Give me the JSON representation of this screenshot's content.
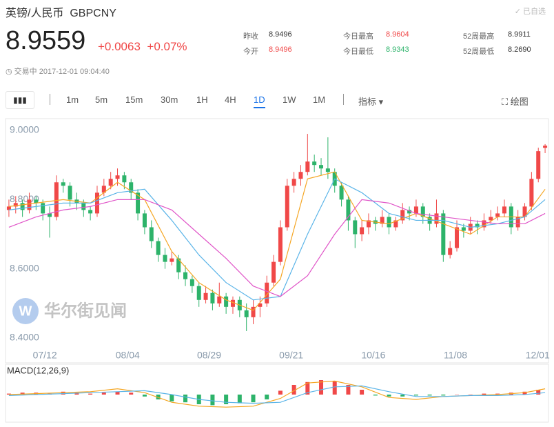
{
  "header": {
    "title": "英镑/人民币",
    "code": "GBPCNY",
    "badge": "已自选",
    "price": "8.9559",
    "change": "+0.0063",
    "change_pct": "+0.07%",
    "status": "交易中",
    "time": "2017-12-01 09:04:40",
    "stats": [
      {
        "label": "昨收",
        "value": "8.9496"
      },
      {
        "label": "今开",
        "value": "8.9496"
      },
      {
        "label": "今日最高",
        "value": "8.9604"
      },
      {
        "label": "今日最低",
        "value": "8.9343"
      },
      {
        "label": "52周最高",
        "value": "8.9911"
      },
      {
        "label": "52周最低",
        "value": "8.2690"
      }
    ]
  },
  "toolbar": {
    "periods": [
      "1m",
      "5m",
      "15m",
      "30m",
      "1H",
      "4H",
      "1D",
      "1W",
      "1M"
    ],
    "active": "1D",
    "indicator": "指标",
    "draw": "绘图"
  },
  "watermark": "华尔街见闻",
  "chart_data": {
    "type": "candlestick",
    "up_color": "#f04848",
    "down_color": "#2db36a",
    "xlim": [
      -0.5,
      79.5
    ],
    "xticks": [
      {
        "value": 5.3,
        "label": "07/12"
      },
      {
        "value": 17.5,
        "label": "08/04"
      },
      {
        "value": 29.5,
        "label": "08/29"
      },
      {
        "value": 41.6,
        "label": "09/21"
      },
      {
        "value": 53.7,
        "label": "10/16"
      },
      {
        "value": 65.8,
        "label": "11/08"
      },
      {
        "value": 77.9,
        "label": "12/01"
      }
    ],
    "ylim": [
      8.37,
      9.03
    ],
    "yticks": [
      {
        "value": 8.4,
        "label": "8.4000"
      },
      {
        "value": 8.6,
        "label": "8.6000"
      },
      {
        "value": 8.8,
        "label": "8.8000"
      },
      {
        "value": 9.0,
        "label": "9.0000"
      }
    ],
    "candles": [
      [
        8.77,
        8.8,
        8.75,
        8.78
      ],
      [
        8.78,
        8.81,
        8.76,
        8.79
      ],
      [
        8.79,
        8.8,
        8.75,
        8.77
      ],
      [
        8.77,
        8.82,
        8.76,
        8.8
      ],
      [
        8.8,
        8.81,
        8.77,
        8.79
      ],
      [
        8.79,
        8.8,
        8.74,
        8.76
      ],
      [
        8.76,
        8.78,
        8.69,
        8.75
      ],
      [
        8.75,
        8.87,
        8.74,
        8.85
      ],
      [
        8.85,
        8.86,
        8.82,
        8.84
      ],
      [
        8.84,
        8.85,
        8.78,
        8.8
      ],
      [
        8.8,
        8.82,
        8.77,
        8.79
      ],
      [
        8.79,
        8.8,
        8.75,
        8.77
      ],
      [
        8.77,
        8.78,
        8.74,
        8.76
      ],
      [
        8.76,
        8.84,
        8.75,
        8.82
      ],
      [
        8.82,
        8.86,
        8.81,
        8.84
      ],
      [
        8.84,
        8.88,
        8.83,
        8.86
      ],
      [
        8.86,
        8.89,
        8.84,
        8.87
      ],
      [
        8.87,
        8.88,
        8.83,
        8.85
      ],
      [
        8.85,
        8.86,
        8.8,
        8.82
      ],
      [
        8.82,
        8.83,
        8.74,
        8.76
      ],
      [
        8.76,
        8.77,
        8.7,
        8.72
      ],
      [
        8.72,
        8.74,
        8.66,
        8.68
      ],
      [
        8.68,
        8.69,
        8.62,
        8.64
      ],
      [
        8.64,
        8.66,
        8.6,
        8.62
      ],
      [
        8.62,
        8.65,
        8.61,
        8.63
      ],
      [
        8.63,
        8.64,
        8.57,
        8.59
      ],
      [
        8.59,
        8.61,
        8.55,
        8.57
      ],
      [
        8.57,
        8.58,
        8.53,
        8.55
      ],
      [
        8.55,
        8.56,
        8.49,
        8.51
      ],
      [
        8.51,
        8.55,
        8.5,
        8.53
      ],
      [
        8.53,
        8.54,
        8.48,
        8.5
      ],
      [
        8.5,
        8.56,
        8.49,
        8.52
      ],
      [
        8.52,
        8.53,
        8.47,
        8.49
      ],
      [
        8.49,
        8.52,
        8.47,
        8.51
      ],
      [
        8.51,
        8.52,
        8.46,
        8.48
      ],
      [
        8.48,
        8.5,
        8.42,
        8.46
      ],
      [
        8.46,
        8.51,
        8.44,
        8.49
      ],
      [
        8.49,
        8.52,
        8.46,
        8.5
      ],
      [
        8.5,
        8.58,
        8.49,
        8.56
      ],
      [
        8.56,
        8.64,
        8.55,
        8.62
      ],
      [
        8.62,
        8.74,
        8.61,
        8.72
      ],
      [
        8.72,
        8.86,
        8.71,
        8.84
      ],
      [
        8.84,
        8.88,
        8.82,
        8.86
      ],
      [
        8.86,
        8.9,
        8.84,
        8.88
      ],
      [
        8.88,
        8.99,
        8.87,
        8.91
      ],
      [
        8.91,
        8.93,
        8.88,
        8.9
      ],
      [
        8.9,
        8.92,
        8.87,
        8.89
      ],
      [
        8.89,
        8.98,
        8.86,
        8.88
      ],
      [
        8.88,
        8.89,
        8.82,
        8.84
      ],
      [
        8.84,
        8.85,
        8.78,
        8.8
      ],
      [
        8.8,
        8.81,
        8.71,
        8.74
      ],
      [
        8.74,
        8.75,
        8.66,
        8.7
      ],
      [
        8.7,
        8.74,
        8.68,
        8.72
      ],
      [
        8.72,
        8.76,
        8.7,
        8.74
      ],
      [
        8.74,
        8.75,
        8.71,
        8.73
      ],
      [
        8.73,
        8.77,
        8.72,
        8.75
      ],
      [
        8.75,
        8.76,
        8.7,
        8.72
      ],
      [
        8.72,
        8.75,
        8.71,
        8.74
      ],
      [
        8.74,
        8.79,
        8.73,
        8.77
      ],
      [
        8.77,
        8.78,
        8.74,
        8.76
      ],
      [
        8.76,
        8.8,
        8.75,
        8.78
      ],
      [
        8.78,
        8.79,
        8.73,
        8.75
      ],
      [
        8.75,
        8.76,
        8.71,
        8.73
      ],
      [
        8.73,
        8.8,
        8.72,
        8.76
      ],
      [
        8.76,
        8.77,
        8.62,
        8.64
      ],
      [
        8.64,
        8.68,
        8.63,
        8.66
      ],
      [
        8.66,
        8.74,
        8.65,
        8.72
      ],
      [
        8.72,
        8.73,
        8.69,
        8.71
      ],
      [
        8.71,
        8.75,
        8.7,
        8.73
      ],
      [
        8.73,
        8.74,
        8.7,
        8.72
      ],
      [
        8.72,
        8.76,
        8.71,
        8.74
      ],
      [
        8.74,
        8.77,
        8.73,
        8.75
      ],
      [
        8.75,
        8.78,
        8.74,
        8.76
      ],
      [
        8.76,
        8.8,
        8.75,
        8.78
      ],
      [
        8.78,
        8.79,
        8.7,
        8.72
      ],
      [
        8.72,
        8.77,
        8.71,
        8.75
      ],
      [
        8.75,
        8.79,
        8.74,
        8.78
      ],
      [
        8.78,
        8.88,
        8.77,
        8.86
      ],
      [
        8.86,
        8.95,
        8.85,
        8.94
      ],
      [
        8.9496,
        8.9604,
        8.9343,
        8.9559
      ]
    ],
    "lines": [
      {
        "color": "#f5a623",
        "x": [
          0,
          4,
          8,
          12,
          16,
          20,
          24,
          28,
          32,
          36,
          40,
          44,
          48,
          52,
          56,
          60,
          64,
          68,
          72,
          76,
          79
        ],
        "values": [
          8.78,
          8.79,
          8.8,
          8.79,
          8.85,
          8.8,
          8.65,
          8.56,
          8.51,
          8.48,
          8.57,
          8.86,
          8.88,
          8.74,
          8.73,
          8.76,
          8.73,
          8.7,
          8.75,
          8.75,
          8.83
        ]
      },
      {
        "color": "#5ab4e8",
        "x": [
          0,
          4,
          8,
          12,
          16,
          20,
          24,
          28,
          32,
          36,
          40,
          44,
          48,
          52,
          56,
          60,
          64,
          68,
          72,
          76,
          79
        ],
        "values": [
          8.77,
          8.78,
          8.79,
          8.79,
          8.82,
          8.83,
          8.74,
          8.64,
          8.56,
          8.51,
          8.52,
          8.7,
          8.86,
          8.82,
          8.76,
          8.74,
          8.74,
          8.72,
          8.73,
          8.75,
          8.8
        ]
      },
      {
        "color": "#e055c8",
        "x": [
          0,
          4,
          8,
          12,
          16,
          20,
          24,
          28,
          32,
          36,
          40,
          44,
          48,
          52,
          56,
          60,
          64,
          68,
          72,
          76,
          79
        ],
        "values": [
          8.72,
          8.75,
          8.77,
          8.78,
          8.8,
          8.8,
          8.77,
          8.7,
          8.63,
          8.55,
          8.52,
          8.58,
          8.7,
          8.8,
          8.79,
          8.76,
          8.75,
          8.74,
          8.73,
          8.73,
          8.76
        ]
      }
    ],
    "macd": {
      "title": "MACD(12,26,9)",
      "ylim": [
        -0.02,
        0.02
      ],
      "hist": {
        "x": [
          0,
          2,
          4,
          6,
          8,
          10,
          12,
          14,
          16,
          18,
          20,
          22,
          24,
          26,
          28,
          30,
          32,
          34,
          36,
          38,
          40,
          42,
          44,
          46,
          48,
          50,
          52,
          54,
          56,
          58,
          60,
          62,
          64,
          66,
          68,
          70,
          72,
          74,
          76,
          78
        ],
        "values": [
          0.001,
          0.002,
          0.002,
          0.001,
          0.003,
          0.002,
          0.001,
          0.002,
          0.003,
          0.002,
          -0.002,
          -0.005,
          -0.007,
          -0.008,
          -0.01,
          -0.011,
          -0.01,
          -0.009,
          -0.008,
          -0.005,
          0.004,
          0.01,
          0.013,
          0.015,
          0.014,
          0.01,
          0.005,
          -0.001,
          -0.002,
          -0.002,
          -0.001,
          -0.001,
          -0.001,
          0,
          0,
          0.001,
          0.001,
          0.002,
          0.003,
          0.005
        ]
      },
      "lines": [
        {
          "color": "#f5a623",
          "x": [
            0,
            4,
            8,
            12,
            16,
            20,
            24,
            28,
            32,
            36,
            40,
            44,
            48,
            52,
            56,
            60,
            64,
            68,
            72,
            76,
            79
          ],
          "values": [
            0,
            0.001,
            0.002,
            0.003,
            0.006,
            0.002,
            -0.008,
            -0.012,
            -0.013,
            -0.012,
            -0.004,
            0.012,
            0.014,
            0.008,
            -0.003,
            -0.005,
            -0.002,
            -0.001,
            0,
            0.002,
            0.006
          ]
        },
        {
          "color": "#5ab4e8",
          "x": [
            0,
            4,
            8,
            12,
            16,
            20,
            24,
            28,
            32,
            36,
            40,
            44,
            48,
            52,
            56,
            60,
            64,
            68,
            72,
            76,
            79
          ],
          "values": [
            -0.001,
            0,
            0.001,
            0.002,
            0.003,
            0.004,
            0,
            -0.005,
            -0.008,
            -0.009,
            -0.008,
            0.002,
            0.008,
            0.009,
            0.003,
            -0.002,
            -0.002,
            -0.001,
            -0.001,
            0,
            0.002
          ]
        }
      ]
    }
  }
}
